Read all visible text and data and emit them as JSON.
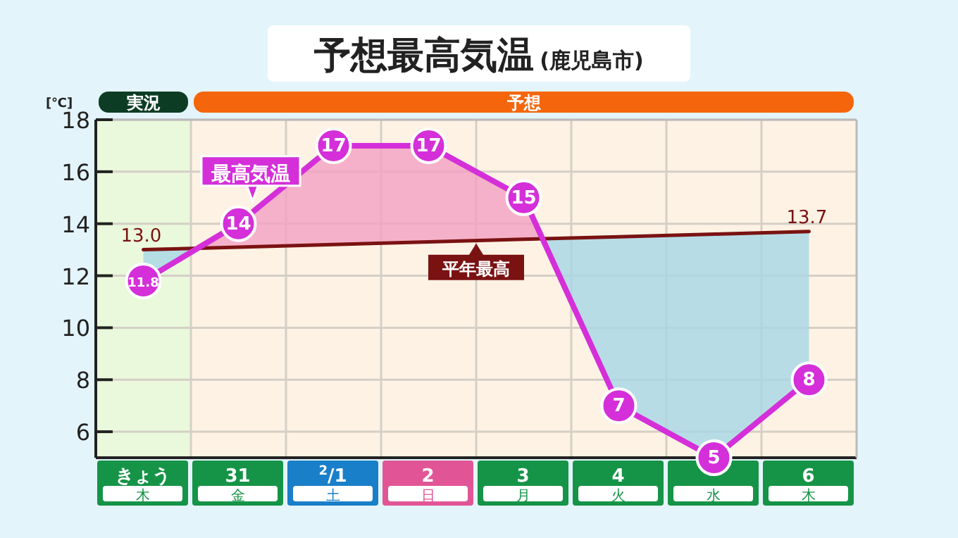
{
  "chart_data": {
    "type": "line",
    "title": "予想最高気温",
    "subtitle": "(鹿児島市)",
    "ylabel": "[℃]",
    "categories": [
      "きょう",
      "31",
      "$^{2}$/1",
      "2",
      "3",
      "4",
      null,
      "6"
    ],
    "series": [
      {
        "name": "最高気温",
        "color": "#d42fd9",
        "marker": "circle",
        "values": [
          11.8,
          14,
          17,
          17,
          15,
          7,
          5,
          8
        ],
        "value_labels": [
          "11.8",
          "14",
          "17",
          "17",
          "15",
          "7",
          "5",
          "8"
        ]
      },
      {
        "name": "平年最高",
        "color": "#7a1212",
        "marker": "none",
        "values": [
          13.0,
          13.1,
          13.2,
          13.3,
          13.4,
          13.5,
          13.6,
          13.7
        ],
        "value_labels": [
          "13.0",
          null,
          null,
          null,
          null,
          null,
          null,
          "13.7"
        ]
      }
    ],
    "ylim": [
      5,
      18
    ],
    "yticks": [
      6,
      8,
      10,
      12,
      14,
      16,
      18
    ],
    "grid": true,
    "bands": [
      {
        "axis": "x",
        "from": "きょう",
        "to": "きょう",
        "label": "実況",
        "color": "#eaf8dc"
      },
      {
        "axis": "x",
        "from": "31",
        "to": "6",
        "label": "予想",
        "color": "#fdf2e4"
      }
    ],
    "annotations": [
      "木",
      "金",
      "土",
      "日",
      "月",
      "火",
      "水",
      "木"
    ]
  }
}
